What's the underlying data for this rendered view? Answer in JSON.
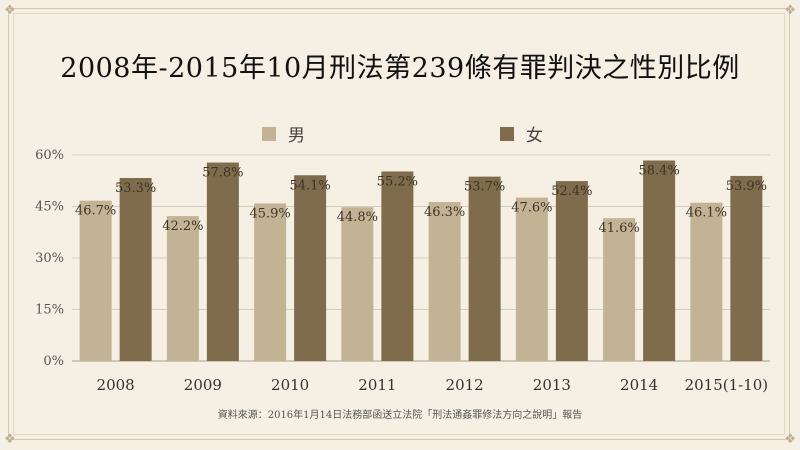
{
  "title": "2008年-2015年10月刑法第239條有罪判決之性別比例",
  "source": "資料來源：2016年1月14日法務部函送立法院「刑法通姦罪修法方向之說明」報告",
  "chart_data": {
    "type": "bar",
    "title": "2008年-2015年10月刑法第239條有罪判決之性別比例",
    "categories": [
      "2008",
      "2009",
      "2010",
      "2011",
      "2012",
      "2013",
      "2014",
      "2015(1-10)"
    ],
    "series": [
      {
        "name": "男",
        "color": "#c2b394",
        "values": [
          46.7,
          42.2,
          45.9,
          44.8,
          46.3,
          47.6,
          41.6,
          46.1
        ],
        "labels": [
          "46.7%",
          "42.2%",
          "45.9%",
          "44.8%",
          "46.3%",
          "47.6%",
          "41.6%",
          "46.1%"
        ]
      },
      {
        "name": "女",
        "color": "#7e6c4d",
        "values": [
          53.3,
          57.8,
          54.1,
          55.2,
          53.7,
          52.4,
          58.4,
          53.9
        ],
        "labels": [
          "53.3%",
          "57.8%",
          "54.1%",
          "55.2%",
          "53.7%",
          "52.4%",
          "58.4%",
          "53.9%"
        ]
      }
    ],
    "ylim": [
      0,
      60
    ],
    "yticks": [
      0,
      15,
      30,
      45,
      60
    ],
    "ytick_labels": [
      "0%",
      "15%",
      "30%",
      "45%",
      "60%"
    ],
    "grid": true,
    "legend_position": "top"
  }
}
